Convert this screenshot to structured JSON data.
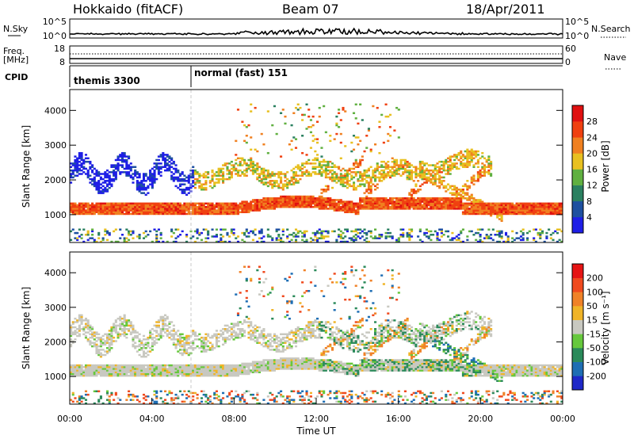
{
  "header": {
    "radar": "Hokkaido (fitACF)",
    "beam": "Beam 07",
    "date": "18/Apr/2011"
  },
  "summary_panels": {
    "nsky_label": "N.Sky",
    "nsky_ticks": [
      "10^5",
      "10^0"
    ],
    "nsearch_label": "N.Search",
    "nsearch_ticks": [
      "10^5",
      "10^0"
    ],
    "freq_label_1": "Freq.",
    "freq_label_2": "[MHz]",
    "freq_ticks": [
      "18",
      "8"
    ],
    "nave_label": "Nave",
    "nave_ticks": [
      "60",
      "0"
    ],
    "cpid_label": "CPID",
    "cpid_segments": [
      {
        "name": "themis 3300",
        "start_hour": 0
      },
      {
        "name": "normal (fast) 151",
        "start_hour": 6
      }
    ]
  },
  "chart_data": [
    {
      "type": "heatmap",
      "name": "power",
      "xlabel": "",
      "ylabel": "Slant Range [km]",
      "xlim": [
        0,
        24
      ],
      "ylim": [
        200,
        4600
      ],
      "y_ticks": [
        "1000",
        "2000",
        "3000",
        "4000"
      ],
      "colorbar": {
        "label": "Power [dB]",
        "range": [
          0,
          32
        ],
        "tick_labels": [
          "4",
          "8",
          "12",
          "16",
          "20",
          "24",
          "28"
        ],
        "colors": [
          "#1e1ee6",
          "#1e50a0",
          "#2a8060",
          "#60b040",
          "#e8c020",
          "#f08020",
          "#f04010",
          "#e01010"
        ]
      }
    },
    {
      "type": "heatmap",
      "name": "velocity",
      "xlabel": "Time UT",
      "ylabel": "Slant Range [km]",
      "xlim": [
        0,
        24
      ],
      "ylim": [
        200,
        4600
      ],
      "x_ticks": [
        "00:00",
        "04:00",
        "08:00",
        "12:00",
        "16:00",
        "20:00",
        "00:00"
      ],
      "y_ticks": [
        "1000",
        "2000",
        "3000",
        "4000"
      ],
      "colorbar": {
        "label": "Velocity [m s⁻¹]",
        "tick_labels": [
          "200",
          "100",
          "50",
          "15",
          "-15",
          "-50",
          "-100",
          "-200"
        ],
        "colors": [
          "#1e28c8",
          "#1e6eb4",
          "#2a8a5a",
          "#66c83c",
          "#c8c8c0",
          "#f0b428",
          "#f08228",
          "#f04a1e",
          "#e61414"
        ]
      }
    }
  ]
}
